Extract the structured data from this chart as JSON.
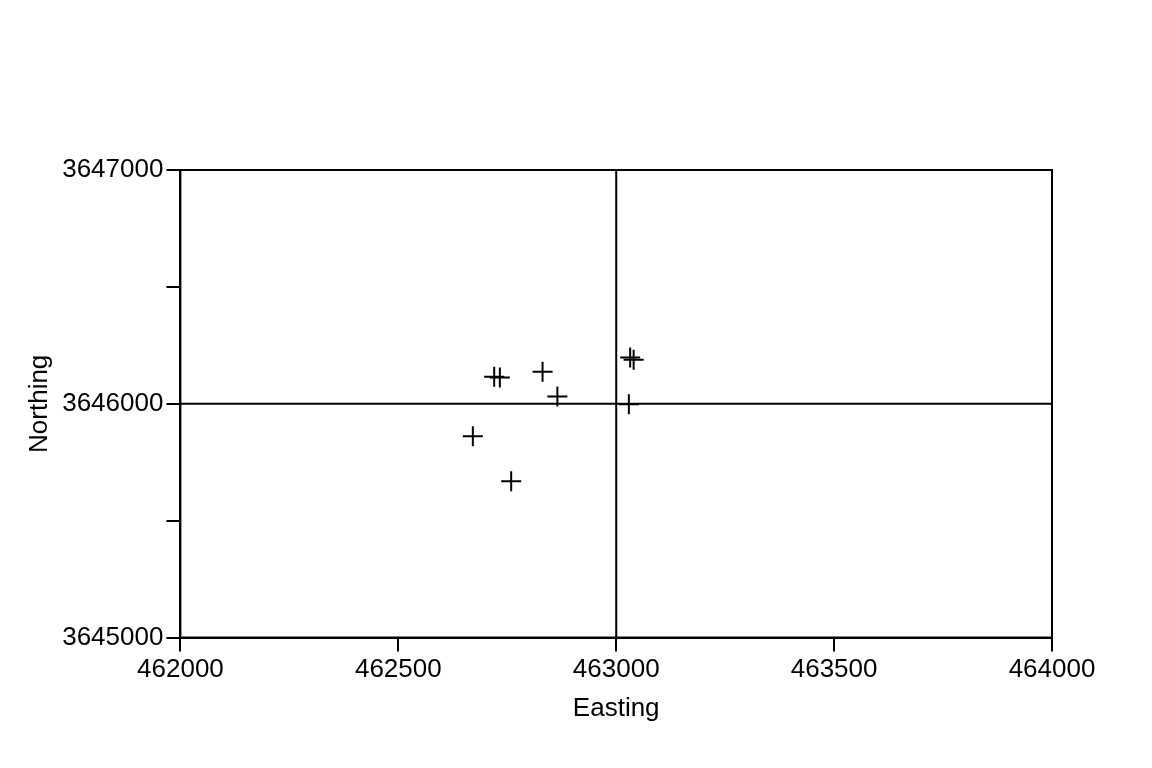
{
  "chart_data": {
    "type": "scatter",
    "xlabel": "Easting",
    "ylabel": "Northing",
    "series": [
      {
        "color": "#000000",
        "x": [
          462720,
          462733,
          462831,
          462865,
          462671,
          462759,
          463032,
          463040,
          463029
        ],
        "values": [
          3646116,
          3646113,
          3646137,
          3646031,
          3645861,
          3645669,
          3646198,
          3646188,
          3645998
        ]
      }
    ],
    "marker": "cross",
    "grid": false,
    "legend": false,
    "xlim": [
      462000,
      464000
    ],
    "xticks": [
      462000,
      462500,
      463000,
      463500,
      464000
    ],
    "ylim": [
      3645000,
      3647000
    ],
    "yticks": [
      3645000,
      {
        "value": 3645500,
        "label": null
      },
      3646000,
      {
        "value": 3646500,
        "label": null
      },
      3647000
    ],
    "ref_lines": [
      {
        "axis": "x",
        "value": 463000
      },
      {
        "axis": "y",
        "value": 3646000
      }
    ]
  }
}
